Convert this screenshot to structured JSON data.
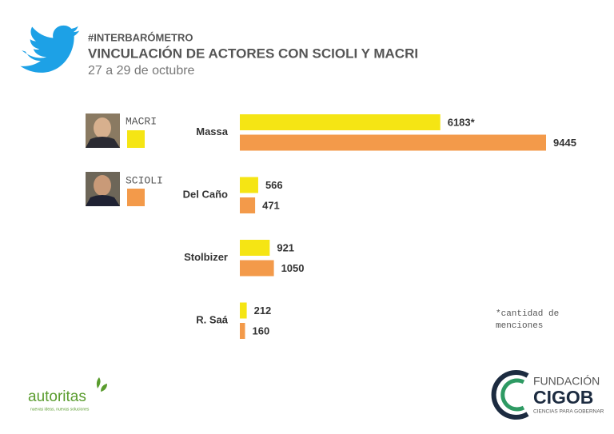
{
  "chart_data": {
    "type": "bar",
    "orientation": "horizontal",
    "title": "#INTERBARÓMETRO",
    "subtitle": "VINCULACIÓN DE ACTORES CON SCIOLI Y MACRI",
    "date": "27 a 29 de octubre",
    "categories": [
      "Massa",
      "Del Caño",
      "Stolbizer",
      "R. Saá"
    ],
    "series": [
      {
        "name": "MACRI",
        "color": "#f5e514",
        "values": [
          6183,
          566,
          921,
          212
        ],
        "value_labels": [
          "6183*",
          "566",
          "921",
          "212"
        ]
      },
      {
        "name": "SCIOLI",
        "color": "#f39a4a",
        "values": [
          9445,
          471,
          1050,
          160
        ]
      }
    ],
    "note": "*cantidad de menciones"
  },
  "branding": {
    "left_logo": "autoritas",
    "left_tagline": "nuevas ideas, nuevas soluciones",
    "right_logo_top": "FUNDACIÓN",
    "right_logo_main": "CIGOB",
    "right_tagline": "CIENCIAS PARA GOBERNAR"
  }
}
